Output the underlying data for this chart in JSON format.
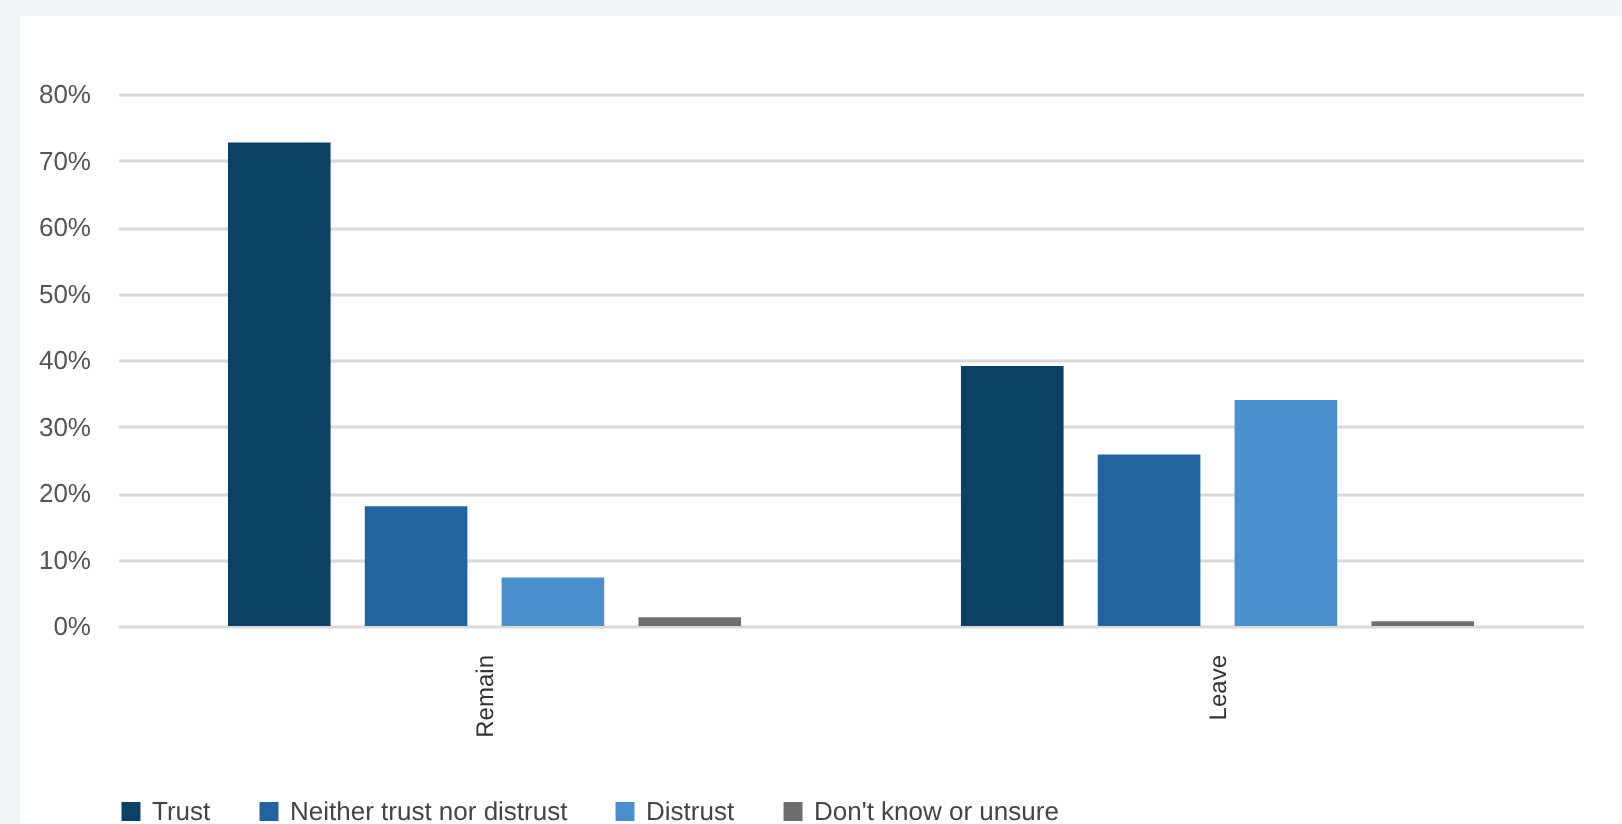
{
  "chart_data": {
    "type": "bar",
    "categories": [
      "Remain",
      "Leave"
    ],
    "series": [
      {
        "name": "Trust",
        "color": "#0c4166",
        "values": [
          72.7,
          39.1
        ]
      },
      {
        "name": "Neither trust nor distrust",
        "color": "#21649f",
        "values": [
          18.0,
          25.8
        ]
      },
      {
        "name": "Distrust",
        "color": "#4a90cd",
        "values": [
          7.3,
          34.0
        ]
      },
      {
        "name": "Don't know or unsure",
        "color": "#6d6e70",
        "values": [
          1.3,
          0.7
        ]
      }
    ],
    "ylim": [
      0,
      80
    ],
    "yticks": [
      {
        "value": 0,
        "label": "0%"
      },
      {
        "value": 10,
        "label": "10%"
      },
      {
        "value": 20,
        "label": "20%"
      },
      {
        "value": 30,
        "label": "30%"
      },
      {
        "value": 40,
        "label": "40%"
      },
      {
        "value": 50,
        "label": "50%"
      },
      {
        "value": 60,
        "label": "60%"
      },
      {
        "value": 70,
        "label": "70%"
      },
      {
        "value": 80,
        "label": "80%"
      }
    ],
    "grid": "y",
    "legend": "bottom"
  }
}
